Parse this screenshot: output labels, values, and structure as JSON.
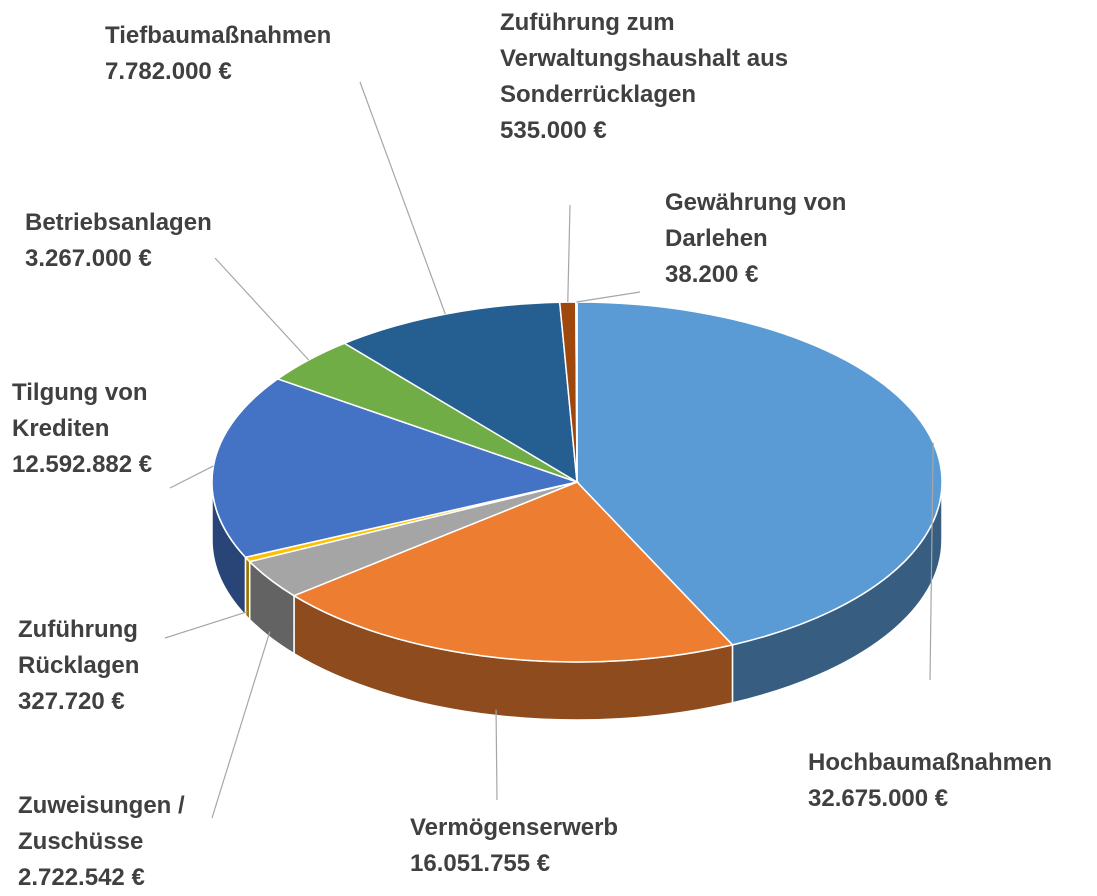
{
  "chart_data": {
    "type": "pie3d",
    "categories": [
      "Hochbaumaßnahmen",
      "Vermögenserwerb",
      "Zuweisungen / Zuschüsse",
      "Zuführung Rücklagen",
      "Tilgung von Krediten",
      "Betriebsanlagen",
      "Tiefbaumaßnahmen",
      "Zuführung zum Verwaltungshaushalt aus Sonderrücklagen",
      "Gewährung von Darlehen"
    ],
    "values": [
      32675000,
      16051755,
      2722542,
      327720,
      12592882,
      3267000,
      7782000,
      535000,
      38200
    ],
    "value_labels": [
      "32.675.000 €",
      "16.051.755 €",
      "2.722.542 €",
      "327.720 €",
      "12.592.882 €",
      "3.267.000 €",
      "7.782.000 €",
      "535.000 €",
      "38.200 €"
    ],
    "colors": [
      "#5b9bd5",
      "#ed7d31",
      "#a5a5a5",
      "#ffc000",
      "#4472c4",
      "#70ad47",
      "#255e91",
      "#9e480e",
      "#997300"
    ]
  }
}
